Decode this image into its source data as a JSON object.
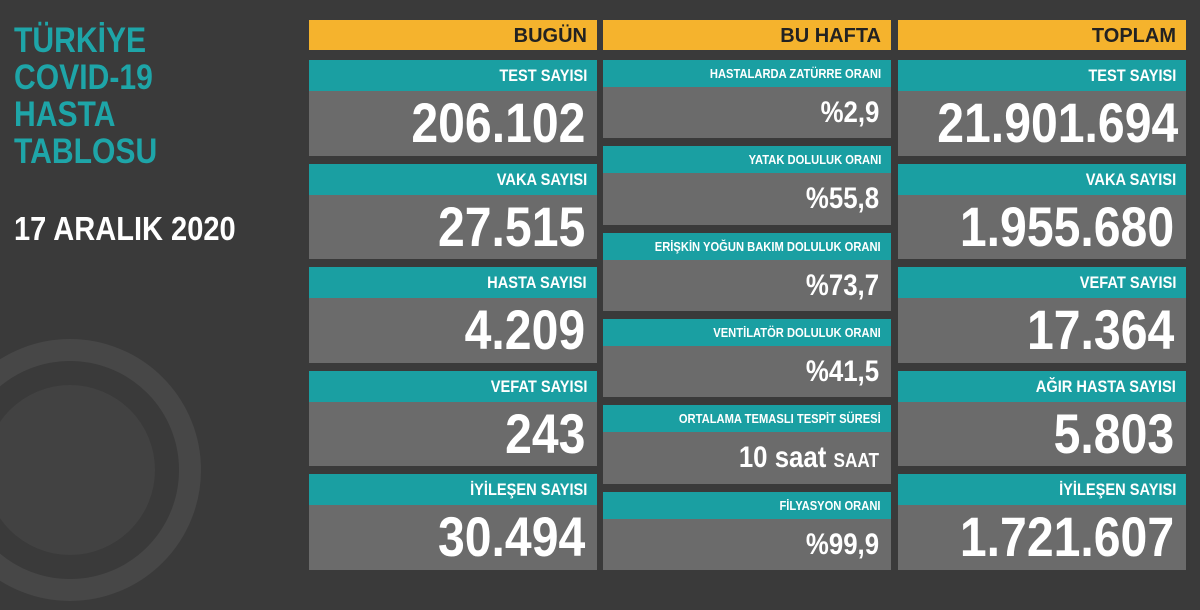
{
  "title_lines": [
    "TÜRKİYE",
    "COVID-19",
    "HASTA",
    "TABLOSU"
  ],
  "date": "17 ARALIK 2020",
  "columns": [
    {
      "header": "BUGÜN",
      "items": [
        {
          "label": "TEST SAYISI",
          "value": "206.102"
        },
        {
          "label": "VAKA SAYISI",
          "value": "27.515"
        },
        {
          "label": "HASTA SAYISI",
          "value": "4.209"
        },
        {
          "label": "VEFAT SAYISI",
          "value": "243"
        },
        {
          "label": "İYİLEŞEN SAYISI",
          "value": "30.494"
        }
      ]
    },
    {
      "header": "BU HAFTA",
      "items": [
        {
          "label": "HASTALARDA ZATÜRRE ORANI",
          "value": "%2,9"
        },
        {
          "label": "YATAK DOLULUK ORANI",
          "value": "%55,8"
        },
        {
          "label": "ERİŞKİN YOĞUN BAKIM DOLULUK ORANI",
          "value": "%73,7"
        },
        {
          "label": "VENTİLATÖR DOLULUK ORANI",
          "value": "%41,5"
        },
        {
          "label": "ORTALAMA TEMASLI TESPİT SÜRESİ",
          "value": "10 saat",
          "unit": "SAAT"
        },
        {
          "label": "FİLYASYON ORANI",
          "value": "%99,9"
        }
      ]
    },
    {
      "header": "TOPLAM",
      "items": [
        {
          "label": "TEST SAYISI",
          "value": "21.901.694"
        },
        {
          "label": "VAKA SAYISI",
          "value": "1.955.680"
        },
        {
          "label": "VEFAT SAYISI",
          "value": "17.364"
        },
        {
          "label": "AĞIR HASTA SAYISI",
          "value": "5.803"
        },
        {
          "label": "İYİLEŞEN SAYISI",
          "value": "1.721.607"
        }
      ]
    }
  ]
}
